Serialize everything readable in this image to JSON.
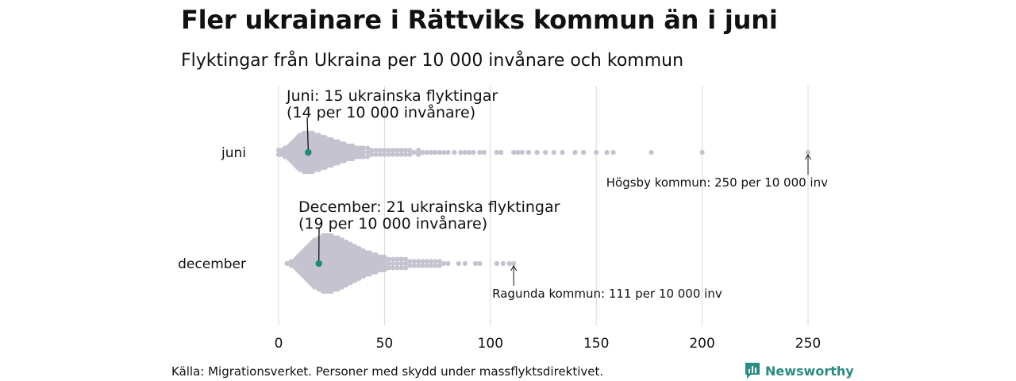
{
  "header": {
    "title": "Fler ukrainare i Rättviks kommun än i juni",
    "subtitle": "Flyktingar från Ukraina per 10 000 invånare och kommun"
  },
  "chart_data": {
    "type": "scatter",
    "subtype": "beeswarm",
    "title": "Fler ukrainare i Rättviks kommun än i juni",
    "subtitle": "Flyktingar från Ukraina per 10 000 invånare och kommun",
    "xlim": [
      0,
      250
    ],
    "xticks": [
      0,
      50,
      100,
      150,
      200,
      250
    ],
    "grid": true,
    "colors": {
      "dots": "#c5c3cf",
      "highlight": "#1d8a7c",
      "grid": "#d9d9d9"
    },
    "series": [
      {
        "name": "juni",
        "values": [
          0,
          1,
          2,
          3,
          4,
          5,
          6,
          7,
          8,
          9,
          10,
          11,
          12,
          13,
          14,
          15,
          16,
          17,
          18,
          19,
          20,
          21,
          22,
          23,
          24,
          25,
          26,
          27,
          28,
          29,
          30,
          31,
          32,
          33,
          34,
          35,
          36,
          37,
          38,
          39,
          40,
          42,
          44,
          46,
          48,
          50,
          52,
          54,
          56,
          58,
          60,
          62,
          64,
          66,
          68,
          70,
          72,
          74,
          76,
          78,
          80,
          83,
          86,
          88,
          90,
          92,
          95,
          97,
          103,
          105,
          111,
          113,
          115,
          118,
          122,
          126,
          130,
          134,
          140,
          144,
          150,
          155,
          158,
          176,
          200,
          250
        ],
        "counts": [
          2,
          2,
          2,
          3,
          3,
          4,
          5,
          6,
          7,
          8,
          9,
          9,
          10,
          10,
          10,
          10,
          10,
          9,
          9,
          9,
          8,
          8,
          8,
          7,
          7,
          7,
          6,
          6,
          6,
          5,
          5,
          5,
          4,
          4,
          4,
          4,
          3,
          3,
          3,
          3,
          3,
          3,
          2,
          2,
          2,
          2,
          2,
          2,
          2,
          2,
          2,
          2,
          1,
          2,
          1,
          1,
          1,
          1,
          1,
          1,
          1,
          1,
          1,
          1,
          1,
          1,
          1,
          1,
          1,
          1,
          1,
          1,
          1,
          1,
          1,
          1,
          1,
          1,
          1,
          1,
          1,
          1,
          1,
          1,
          1,
          1
        ],
        "highlight": {
          "value": 14,
          "label": "Rättvik"
        },
        "annotation": {
          "line1": "Juni: 15 ukrainska flyktingar",
          "line2": "(14 per 10 000 invånare)"
        },
        "extreme": {
          "value": 250,
          "label": "Högsby kommun: 250 per 10 000 inv"
        }
      },
      {
        "name": "december",
        "values": [
          4,
          5,
          6,
          7,
          8,
          9,
          10,
          11,
          12,
          13,
          14,
          15,
          16,
          17,
          18,
          19,
          20,
          21,
          22,
          23,
          24,
          25,
          26,
          27,
          28,
          29,
          30,
          31,
          32,
          33,
          34,
          35,
          36,
          37,
          38,
          39,
          40,
          41,
          42,
          43,
          44,
          45,
          46,
          47,
          48,
          49,
          50,
          52,
          54,
          56,
          58,
          60,
          62,
          64,
          66,
          68,
          70,
          72,
          74,
          76,
          78,
          80,
          85,
          88,
          93,
          95,
          103,
          106,
          109,
          111
        ],
        "counts": [
          1,
          1,
          2,
          2,
          3,
          4,
          5,
          6,
          7,
          8,
          9,
          10,
          11,
          12,
          12,
          13,
          13,
          14,
          14,
          14,
          14,
          14,
          13,
          13,
          13,
          12,
          12,
          11,
          11,
          10,
          10,
          9,
          9,
          8,
          8,
          7,
          7,
          6,
          6,
          6,
          5,
          5,
          5,
          4,
          4,
          4,
          4,
          3,
          3,
          3,
          3,
          3,
          2,
          2,
          2,
          2,
          2,
          2,
          2,
          2,
          1,
          1,
          1,
          1,
          1,
          1,
          1,
          1,
          1,
          1
        ],
        "highlight": {
          "value": 19,
          "label": "Rättvik"
        },
        "annotation": {
          "line1": "December: 21 ukrainska flyktingar",
          "line2": "(19 per 10 000 invånare)"
        },
        "extreme": {
          "value": 111,
          "label": "Ragunda kommun: 111 per 10 000 inv"
        }
      }
    ]
  },
  "footer": {
    "source": "Källa: Migrationsverket. Personer med skydd under massflyktsdirektivet.",
    "brand": "Newsworthy",
    "brand_icon": "bar-chart-logo-icon"
  }
}
